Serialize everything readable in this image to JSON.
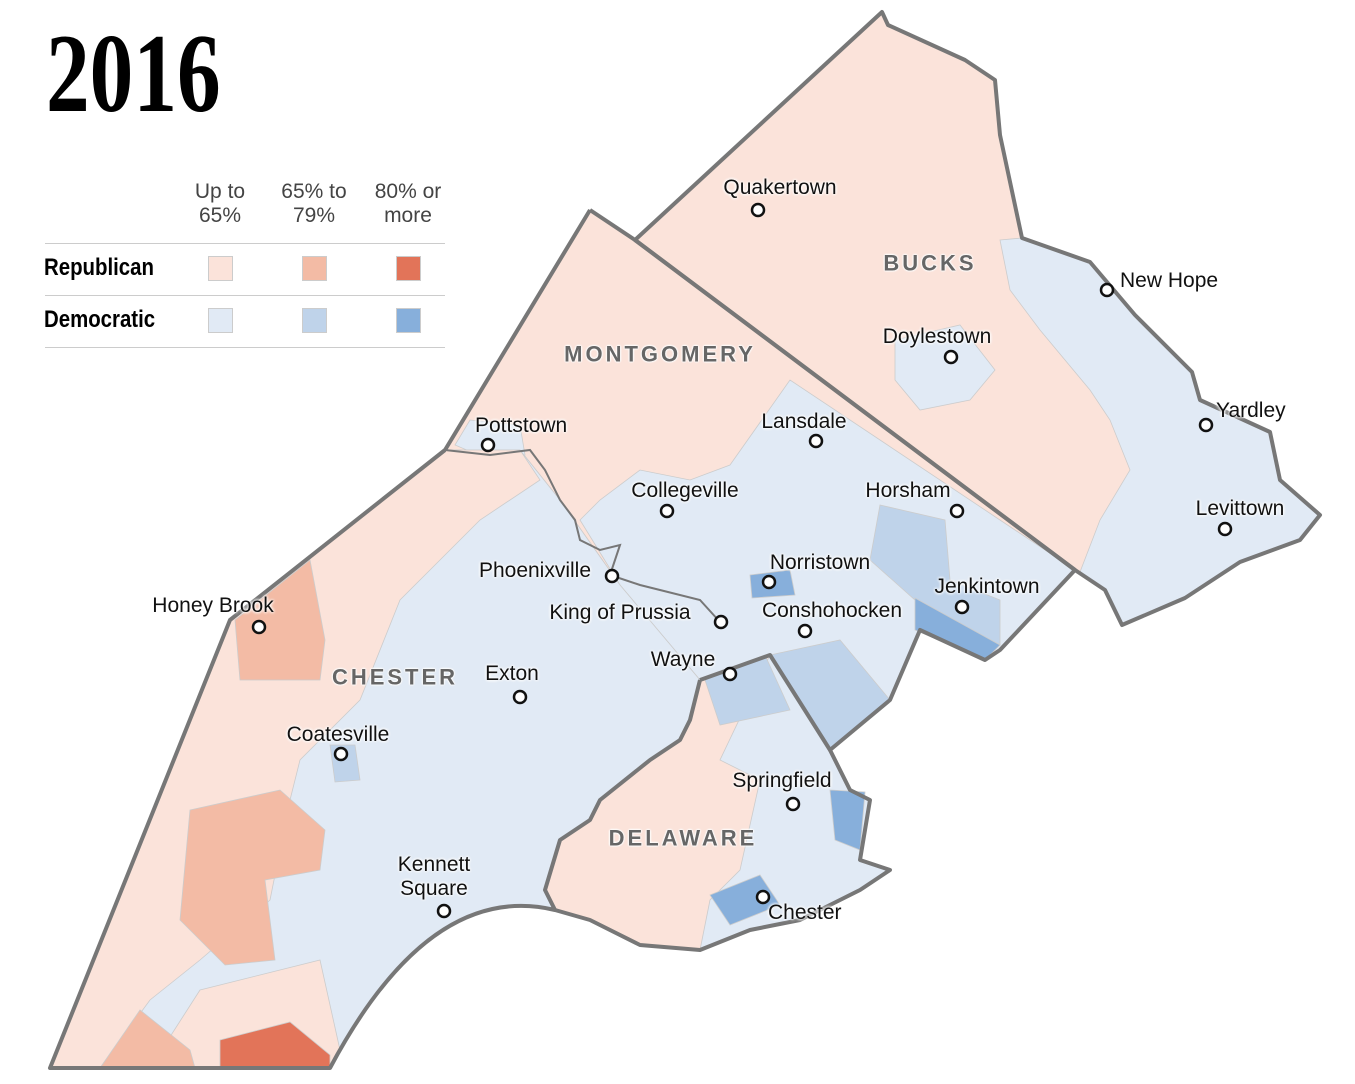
{
  "title": "2016",
  "legend": {
    "columns": [
      "Up to\n65%",
      "65% to\n79%",
      "80% or\nmore"
    ],
    "rows": [
      {
        "label": "Republican",
        "colors": [
          "#fbe3da",
          "#f3bba5",
          "#e27459"
        ]
      },
      {
        "label": "Democratic",
        "colors": [
          "#e1eaf5",
          "#bfd3ea",
          "#87afdb"
        ]
      }
    ]
  },
  "counties": [
    "BUCKS",
    "MONTGOMERY",
    "CHESTER",
    "DELAWARE"
  ],
  "towns": [
    "Quakertown",
    "New Hope",
    "Doylestown",
    "Yardley",
    "Pottstown",
    "Lansdale",
    "Horsham",
    "Collegeville",
    "Levittown",
    "Norristown",
    "Phoenixville",
    "Jenkintown",
    "Honey Brook",
    "King of Prussia",
    "Conshohocken",
    "Exton",
    "Wayne",
    "Coatesville",
    "Springfield",
    "Kennett\nSquare",
    "Chester"
  ]
}
